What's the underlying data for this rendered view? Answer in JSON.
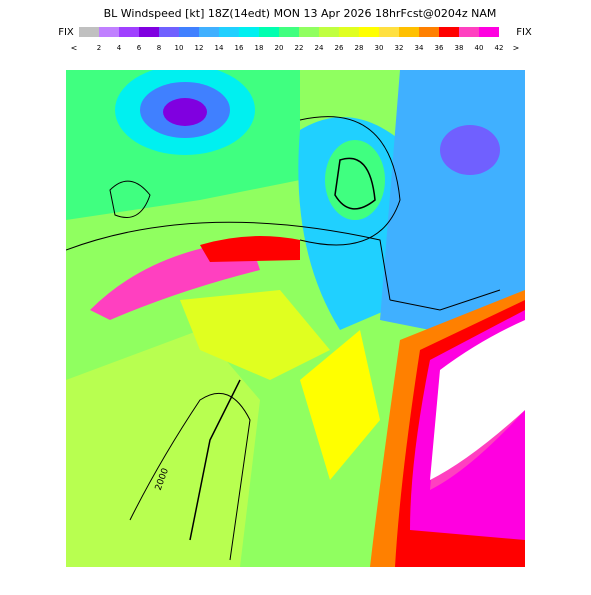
{
  "title": "BL Windspeed [kt] 18Z(14edt) MON 13 Apr 2026  18hrFcst@0204z NAM",
  "left_label": "FIX",
  "right_label": "FIX",
  "left_arrow": "<",
  "right_arrow": ">",
  "colorbar": {
    "labels": [
      "2",
      "4",
      "6",
      "8",
      "10",
      "12",
      "14",
      "16",
      "18",
      "20",
      "22",
      "24",
      "26",
      "28",
      "30",
      "32",
      "34",
      "36",
      "38",
      "40",
      "42"
    ],
    "colors": [
      "#c0c0c0",
      "#c080ff",
      "#a040ff",
      "#8000e0",
      "#7060ff",
      "#4080ff",
      "#40b0ff",
      "#20d0ff",
      "#00f0f0",
      "#00ffb0",
      "#40ff80",
      "#90ff60",
      "#c0ff40",
      "#e0ff20",
      "#ffff00",
      "#ffe040",
      "#ffc000",
      "#ff8000",
      "#ff0000",
      "#ff40c0",
      "#ff00e0"
    ]
  },
  "contour_labels": [
    "2000"
  ]
}
